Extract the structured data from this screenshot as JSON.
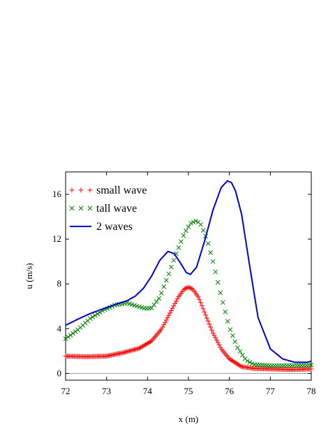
{
  "chart_data": {
    "type": "line",
    "title": "",
    "xlabel": "x (m)",
    "ylabel": "u (m/s)",
    "xlim": [
      72,
      78
    ],
    "ylim": [
      -0.6,
      18
    ],
    "grid": false,
    "legend_position": "top-left",
    "x_ticks": [
      72,
      73,
      74,
      75,
      76,
      77,
      78
    ],
    "y_ticks": [
      0,
      4,
      8,
      12,
      16
    ],
    "baseline": 0,
    "series": [
      {
        "name": "small wave",
        "style": "plus-markers",
        "color": "#ff0000",
        "x": [
          72.0,
          72.5,
          73.0,
          73.4,
          73.8,
          74.1,
          74.35,
          74.55,
          74.75,
          74.9,
          75.0,
          75.1,
          75.25,
          75.4,
          75.6,
          75.8,
          76.0,
          76.3,
          76.6,
          77.0,
          77.5,
          78.0
        ],
        "y": [
          1.55,
          1.5,
          1.55,
          1.85,
          2.25,
          2.9,
          4.0,
          5.4,
          6.8,
          7.55,
          7.7,
          7.55,
          6.8,
          5.4,
          3.6,
          2.2,
          1.3,
          0.6,
          0.45,
          0.4,
          0.35,
          0.4
        ]
      },
      {
        "name": "tall wave",
        "style": "x-markers",
        "color": "#008000",
        "x": [
          72.0,
          72.3,
          72.6,
          72.9,
          73.2,
          73.5,
          73.75,
          73.95,
          74.1,
          74.3,
          74.5,
          74.7,
          74.9,
          75.05,
          75.2,
          75.3,
          75.45,
          75.6,
          75.8,
          76.0,
          76.2,
          76.4,
          76.6,
          77.0,
          77.5,
          78.0
        ],
        "y": [
          3.1,
          3.9,
          4.9,
          5.6,
          6.1,
          6.3,
          6.0,
          5.8,
          5.85,
          6.8,
          8.7,
          10.7,
          12.5,
          13.4,
          13.65,
          13.3,
          12.0,
          10.0,
          6.9,
          4.1,
          2.3,
          1.2,
          0.8,
          0.7,
          0.7,
          0.75
        ]
      },
      {
        "name": "2 waves",
        "style": "line",
        "color": "#0000cc",
        "x": [
          72.0,
          72.3,
          72.6,
          72.9,
          73.2,
          73.5,
          73.7,
          73.9,
          74.1,
          74.3,
          74.5,
          74.65,
          74.8,
          74.95,
          75.05,
          75.2,
          75.4,
          75.6,
          75.8,
          75.95,
          76.05,
          76.15,
          76.3,
          76.5,
          76.7,
          77.0,
          77.3,
          77.6,
          77.9,
          78.0
        ],
        "y": [
          4.3,
          4.85,
          5.35,
          5.75,
          6.15,
          6.5,
          6.9,
          7.6,
          8.7,
          10.1,
          10.9,
          10.7,
          9.9,
          9.0,
          8.85,
          9.5,
          11.9,
          14.6,
          16.6,
          17.2,
          17.05,
          16.3,
          14.2,
          9.5,
          5.0,
          2.2,
          1.3,
          1.0,
          1.0,
          1.1
        ]
      }
    ]
  }
}
